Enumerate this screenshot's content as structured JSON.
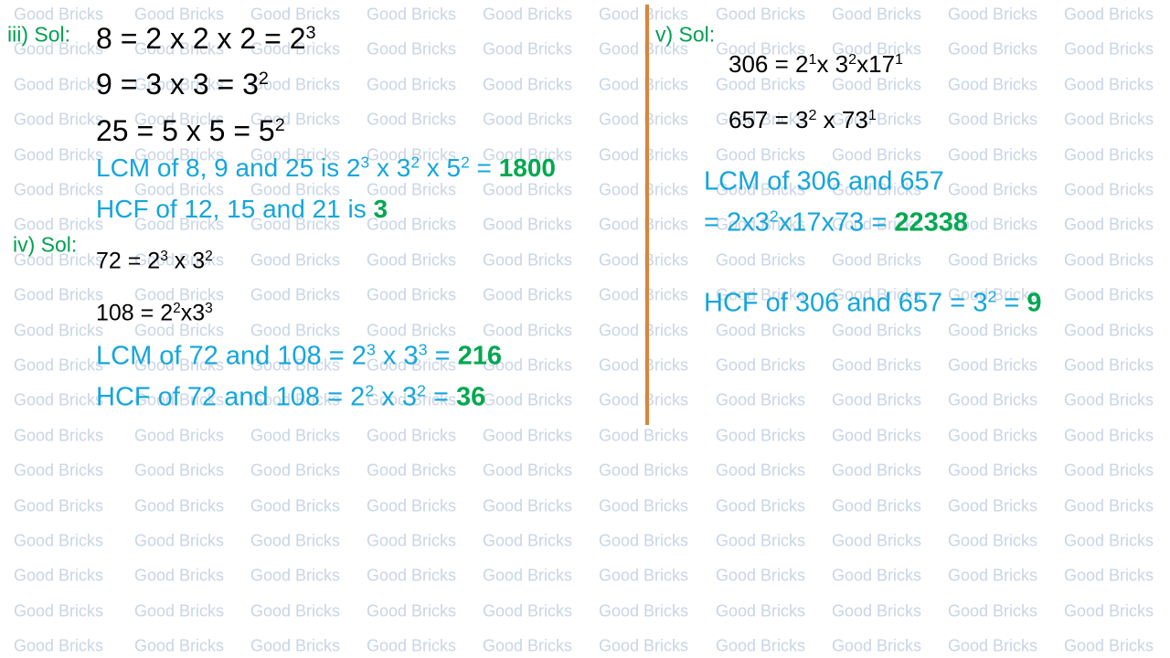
{
  "watermark": "Good Bricks",
  "sections": [
    {
      "label": "iii) Sol:",
      "lines": [
        {
          "runs": [
            {
              "text": "8 = 2 x 2 x 2 = 2"
            },
            {
              "sup": "3"
            }
          ]
        },
        {
          "runs": [
            {
              "text": "9 = 3 x 3 = 3"
            },
            {
              "sup": "2"
            }
          ]
        },
        {
          "runs": [
            {
              "text": "25 = 5 x 5 = 5"
            },
            {
              "sup": "2"
            }
          ]
        },
        {
          "runs": [
            {
              "text": "LCM of 8, 9 and 25 is 2"
            },
            {
              "sup": "3"
            },
            {
              "text": " x 3"
            },
            {
              "sup": "2"
            },
            {
              "text": " x 5"
            },
            {
              "sup": "2"
            },
            {
              "text": " = "
            },
            {
              "bold": "1800"
            }
          ]
        },
        {
          "runs": [
            {
              "text": "HCF of 12, 15 and 21 is "
            },
            {
              "bold": "3"
            }
          ]
        }
      ]
    },
    {
      "label": "iv) Sol:",
      "lines": [
        {
          "runs": [
            {
              "text": "72 = 2"
            },
            {
              "sup": "3"
            },
            {
              "text": " x 3"
            },
            {
              "sup": "2"
            }
          ]
        },
        {
          "runs": [
            {
              "text": "108 = 2"
            },
            {
              "sup": "2"
            },
            {
              "text": "x3"
            },
            {
              "sup": "3"
            }
          ]
        },
        {
          "runs": [
            {
              "text": "LCM of 72 and 108 = 2"
            },
            {
              "sup": "3"
            },
            {
              "text": " x 3"
            },
            {
              "sup": "3"
            },
            {
              "text": " = "
            },
            {
              "bold": "216"
            }
          ]
        },
        {
          "runs": [
            {
              "text": "HCF of 72 and 108 = 2"
            },
            {
              "sup": "2"
            },
            {
              "text": " x 3"
            },
            {
              "sup": "2"
            },
            {
              "text": " = "
            },
            {
              "bold": "36"
            }
          ]
        }
      ]
    },
    {
      "label": "v) Sol:",
      "lines": [
        {
          "runs": [
            {
              "text": "306 = 2"
            },
            {
              "sup": "1"
            },
            {
              "text": "x 3"
            },
            {
              "sup": "2"
            },
            {
              "text": "x17"
            },
            {
              "sup": "1"
            }
          ]
        },
        {
          "runs": [
            {
              "text": "657 = 3"
            },
            {
              "sup": "2"
            },
            {
              "text": " x 73"
            },
            {
              "sup": "1"
            }
          ]
        },
        {
          "runs": [
            {
              "text": "LCM of 306 and 657"
            }
          ]
        },
        {
          "runs": [
            {
              "text": "= 2x3"
            },
            {
              "sup": "2"
            },
            {
              "text": "x17x73 = "
            },
            {
              "bold": "22338"
            }
          ]
        },
        {
          "runs": [
            {
              "text": "HCF of 306 and 657 = 3"
            },
            {
              "sup": "2"
            },
            {
              "text": " = "
            },
            {
              "bold": "9"
            }
          ]
        }
      ]
    }
  ]
}
